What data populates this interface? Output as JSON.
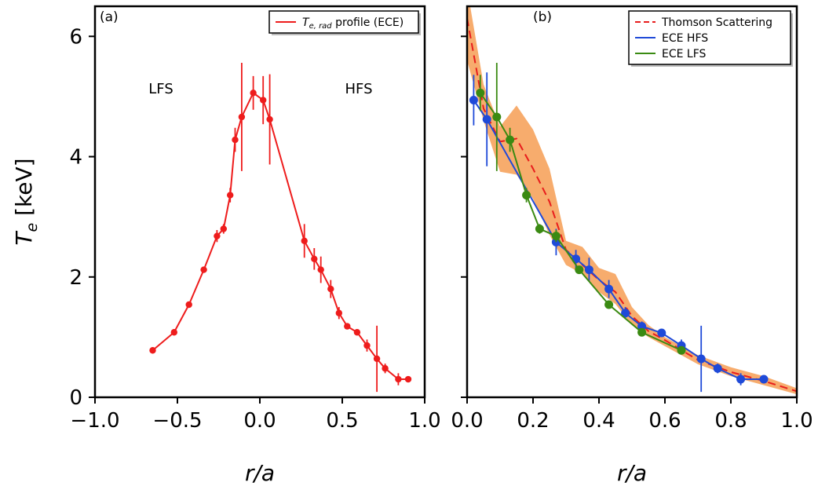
{
  "chart_data": [
    {
      "type": "line",
      "panel_label": "(a)",
      "xlabel": "r/a",
      "ylabel_main": "T",
      "ylabel_sub": "e",
      "ylabel_unit": " [keV]",
      "xlim": [
        -1.0,
        1.0
      ],
      "ylim": [
        0,
        6.5
      ],
      "xticks": [
        "−1.0",
        "−0.5",
        "0.0",
        "0.5",
        "1.0"
      ],
      "xtick_values": [
        -1.0,
        -0.5,
        0.0,
        0.5,
        1.0
      ],
      "yticks": [
        "0",
        "2",
        "4",
        "6"
      ],
      "ytick_values": [
        0,
        2,
        4,
        6
      ],
      "annotations": [
        {
          "text": "LFS",
          "x": -0.6,
          "y": 5.05
        },
        {
          "text": "HFS",
          "x": 0.6,
          "y": 5.05
        }
      ],
      "legend": {
        "position": "top-right",
        "entries": [
          {
            "main": "T",
            "sub": "e, rad",
            "rest": " profile (ECE)",
            "color": "#ee1c1c"
          }
        ]
      },
      "series": [
        {
          "name": "Te,rad profile (ECE)",
          "color": "#ee1c1c",
          "x": [
            -0.65,
            -0.52,
            -0.43,
            -0.34,
            -0.26,
            -0.22,
            -0.18,
            -0.15,
            -0.11,
            -0.04,
            0.02,
            0.06,
            0.27,
            0.33,
            0.37,
            0.43,
            0.48,
            0.53,
            0.59,
            0.65,
            0.71,
            0.76,
            0.84,
            0.9
          ],
          "y": [
            0.78,
            1.08,
            1.54,
            2.12,
            2.68,
            2.8,
            3.36,
            4.28,
            4.66,
            5.06,
            4.94,
            4.62,
            2.6,
            2.3,
            2.12,
            1.8,
            1.4,
            1.18,
            1.08,
            0.86,
            0.64,
            0.48,
            0.3,
            0.3
          ],
          "yerr": [
            0.05,
            0.05,
            0.05,
            0.05,
            0.1,
            0.08,
            0.12,
            0.2,
            0.9,
            0.28,
            0.4,
            0.75,
            0.28,
            0.18,
            0.22,
            0.15,
            0.1,
            0.05,
            0.05,
            0.1,
            0.55,
            0.08,
            0.1,
            0.05
          ]
        }
      ]
    },
    {
      "type": "line",
      "panel_label": "(b)",
      "xlabel": "r/a",
      "xlim": [
        0.0,
        1.0
      ],
      "ylim": [
        0,
        6.5
      ],
      "xticks": [
        "0.0",
        "0.2",
        "0.4",
        "0.6",
        "0.8",
        "1.0"
      ],
      "xtick_values": [
        0.0,
        0.2,
        0.4,
        0.6,
        0.8,
        1.0
      ],
      "legend": {
        "position": "top-right",
        "entries": [
          {
            "main": "Thomson Scattering",
            "color": "#e81c1c",
            "dashed": true
          },
          {
            "main": "ECE HFS",
            "color": "#1f4ad8"
          },
          {
            "main": "ECE LFS",
            "color": "#3a8a12"
          }
        ]
      },
      "band": {
        "color": "#f7a865",
        "x": [
          0.0,
          0.05,
          0.1,
          0.15,
          0.2,
          0.25,
          0.3,
          0.35,
          0.4,
          0.45,
          0.5,
          0.55,
          0.6,
          0.7,
          0.8,
          0.9,
          1.0
        ],
        "upper": [
          6.8,
          5.2,
          4.5,
          4.85,
          4.45,
          3.8,
          2.6,
          2.5,
          2.15,
          2.05,
          1.5,
          1.2,
          1.0,
          0.7,
          0.5,
          0.35,
          0.15
        ],
        "lower": [
          5.6,
          4.6,
          3.75,
          3.7,
          3.3,
          2.7,
          2.2,
          2.05,
          1.75,
          1.55,
          1.2,
          1.0,
          0.85,
          0.55,
          0.35,
          0.2,
          0.05
        ]
      },
      "series": [
        {
          "name": "Thomson Scattering",
          "color": "#e81c1c",
          "dashed": true,
          "x": [
            0.0,
            0.05,
            0.1,
            0.15,
            0.2,
            0.25,
            0.3,
            0.35,
            0.4,
            0.45,
            0.5,
            0.55,
            0.6,
            0.7,
            0.8,
            0.9,
            1.0
          ],
          "y": [
            6.3,
            4.8,
            4.25,
            4.3,
            3.8,
            3.25,
            2.45,
            2.2,
            1.95,
            1.75,
            1.35,
            1.1,
            0.95,
            0.62,
            0.42,
            0.27,
            0.1
          ]
        },
        {
          "name": "ECE HFS",
          "color": "#1f4ad8",
          "x": [
            0.02,
            0.06,
            0.27,
            0.33,
            0.37,
            0.43,
            0.48,
            0.53,
            0.59,
            0.65,
            0.71,
            0.76,
            0.83,
            0.9
          ],
          "y": [
            4.94,
            4.62,
            2.58,
            2.3,
            2.12,
            1.8,
            1.4,
            1.18,
            1.07,
            0.86,
            0.64,
            0.48,
            0.3,
            0.3
          ],
          "yerr": [
            0.42,
            0.78,
            0.22,
            0.15,
            0.2,
            0.15,
            0.1,
            0.08,
            0.05,
            0.1,
            0.55,
            0.08,
            0.1,
            0.05
          ]
        },
        {
          "name": "ECE LFS",
          "color": "#3a8a12",
          "x": [
            0.04,
            0.09,
            0.13,
            0.18,
            0.22,
            0.27,
            0.34,
            0.43,
            0.53,
            0.65
          ],
          "y": [
            5.06,
            4.66,
            4.28,
            3.36,
            2.8,
            2.68,
            2.12,
            1.54,
            1.08,
            0.78
          ],
          "yerr": [
            0.3,
            0.9,
            0.2,
            0.12,
            0.08,
            0.1,
            0.05,
            0.05,
            0.05,
            0.05
          ]
        }
      ]
    }
  ]
}
